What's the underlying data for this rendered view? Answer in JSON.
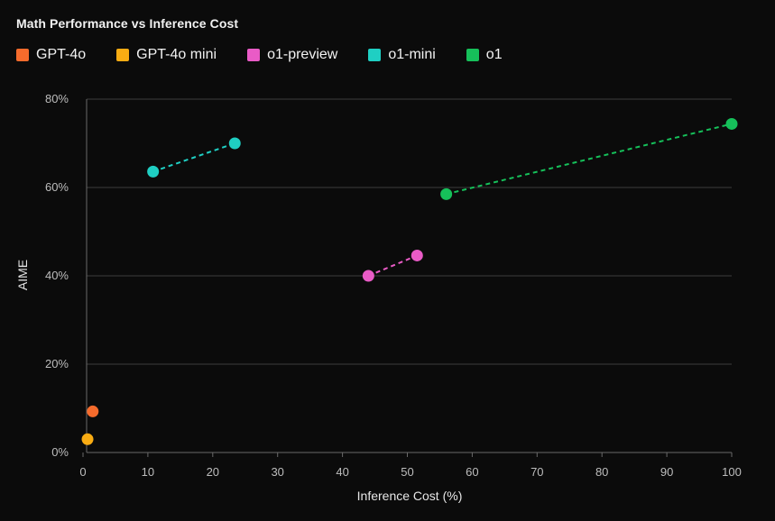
{
  "chart_data": {
    "type": "scatter",
    "title": "Math Performance vs Inference Cost",
    "xlabel": "Inference Cost (%)",
    "ylabel": "AIME",
    "xlim": [
      0,
      100
    ],
    "ylim": [
      0,
      80
    ],
    "xticks": [
      0,
      10,
      20,
      30,
      40,
      50,
      60,
      70,
      80,
      90,
      100
    ],
    "xtick_labels": [
      "0",
      "10",
      "20",
      "30",
      "40",
      "50",
      "60",
      "70",
      "80",
      "90",
      "100"
    ],
    "yticks": [
      0,
      20,
      40,
      60,
      80
    ],
    "ytick_labels": [
      "0%",
      "20%",
      "40%",
      "60%",
      "80%"
    ],
    "grid": "horizontal",
    "legend": "top-left",
    "series": [
      {
        "name": "GPT-4o",
        "color": "#f56b2c",
        "connected": false,
        "points": [
          {
            "x": 1.5,
            "y": 9.3
          }
        ]
      },
      {
        "name": "GPT-4o mini",
        "color": "#f9ac13",
        "connected": false,
        "points": [
          {
            "x": 0.7,
            "y": 3.0
          }
        ]
      },
      {
        "name": "o1-preview",
        "color": "#e95bc6",
        "connected": true,
        "points": [
          {
            "x": 44,
            "y": 40
          },
          {
            "x": 51.5,
            "y": 44.6
          }
        ]
      },
      {
        "name": "o1-mini",
        "color": "#1fcfc3",
        "connected": true,
        "points": [
          {
            "x": 10.8,
            "y": 63.6
          },
          {
            "x": 23.4,
            "y": 70
          }
        ]
      },
      {
        "name": "o1",
        "color": "#16c05a",
        "connected": true,
        "points": [
          {
            "x": 56,
            "y": 58.5
          },
          {
            "x": 100,
            "y": 74.4
          }
        ]
      }
    ]
  }
}
